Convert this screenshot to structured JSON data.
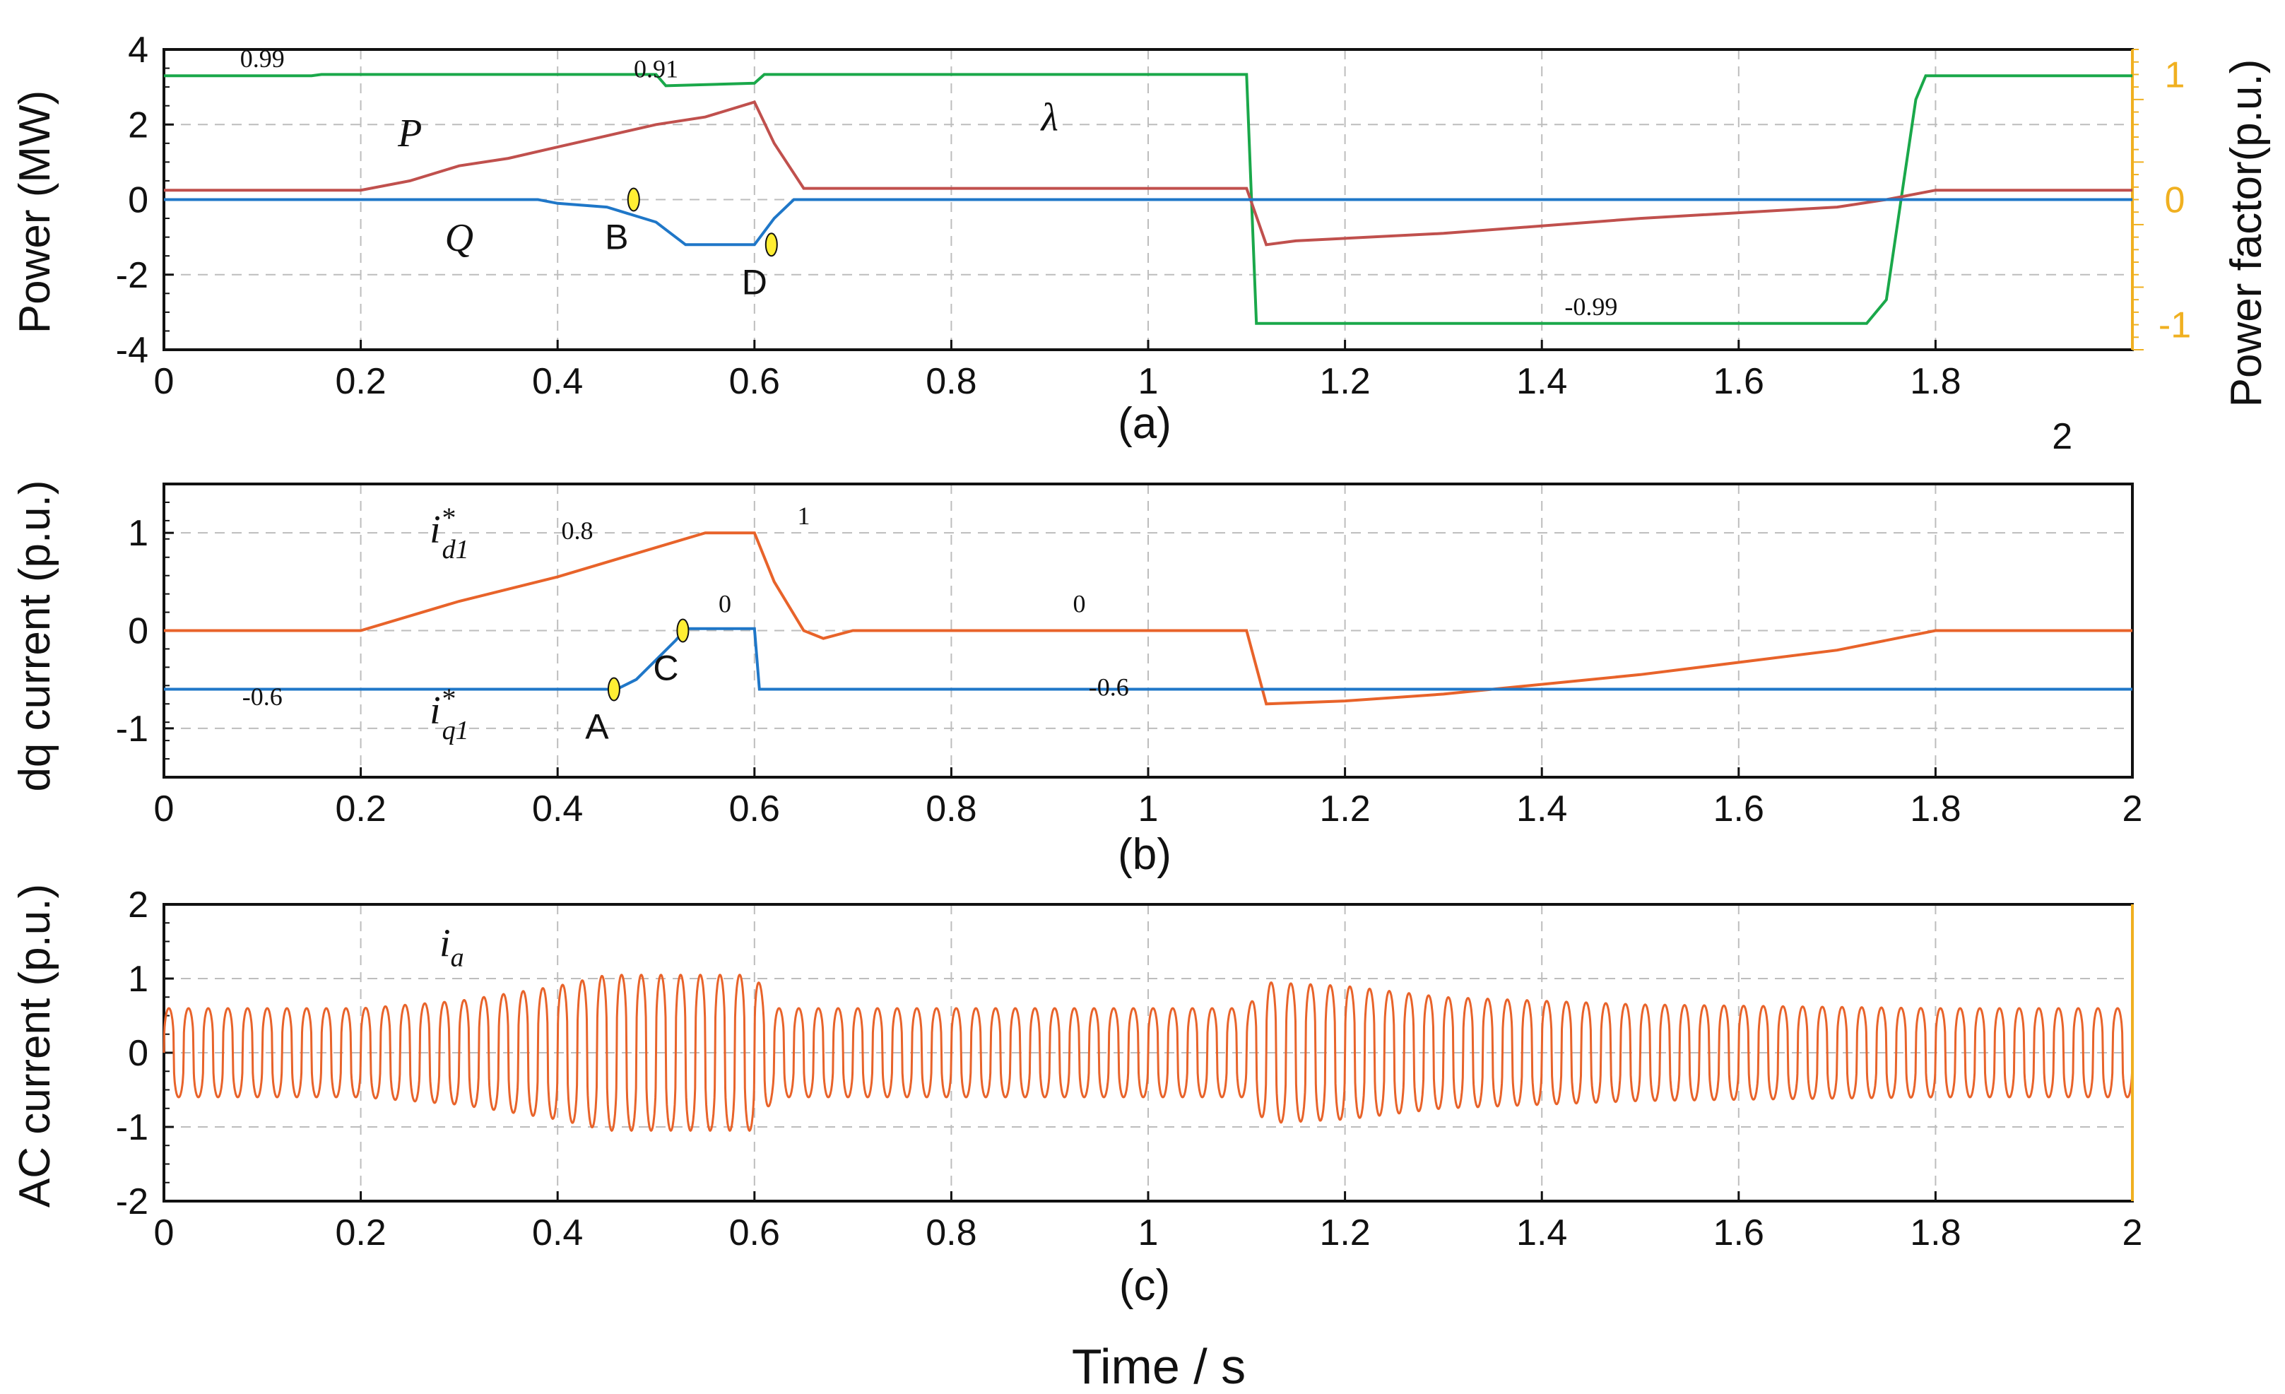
{
  "chart_data": [
    {
      "id": "a",
      "type": "line",
      "caption": "(a)",
      "ylabel": "Power (MW)",
      "ylabel_right": "Power factor(p.u.)",
      "xlim": [
        0,
        2
      ],
      "ylim": [
        -4,
        4
      ],
      "ylim_right": [
        -1.2,
        1.2
      ],
      "x_ticks": [
        "0",
        "0.2",
        "0.4",
        "0.6",
        "0.8",
        "1",
        "1.2",
        "1.4",
        "1.6",
        "1.8"
      ],
      "x_tick_extra": "2",
      "y_ticks": [
        "4",
        "2",
        "0",
        "-2",
        "-4"
      ],
      "y_ticks_right": [
        "1",
        "0",
        "-1"
      ],
      "series": [
        {
          "name": "λ",
          "axis": "right",
          "color": "#1aa84a",
          "points": [
            [
              0,
              0.99
            ],
            [
              0.15,
              0.99
            ],
            [
              0.16,
              1.0
            ],
            [
              0.5,
              1.0
            ],
            [
              0.51,
              0.91
            ],
            [
              0.6,
              0.93
            ],
            [
              0.61,
              1.0
            ],
            [
              1.1,
              1.0
            ],
            [
              1.11,
              -0.99
            ],
            [
              1.73,
              -0.99
            ],
            [
              1.75,
              -0.8
            ],
            [
              1.765,
              0.0
            ],
            [
              1.78,
              0.8
            ],
            [
              1.79,
              0.99
            ],
            [
              2.0,
              0.99
            ]
          ]
        },
        {
          "name": "P",
          "axis": "left",
          "color": "#c0504d",
          "points": [
            [
              0,
              0.25
            ],
            [
              0.2,
              0.25
            ],
            [
              0.25,
              0.5
            ],
            [
              0.3,
              0.9
            ],
            [
              0.35,
              1.1
            ],
            [
              0.4,
              1.4
            ],
            [
              0.45,
              1.7
            ],
            [
              0.5,
              2.0
            ],
            [
              0.55,
              2.2
            ],
            [
              0.6,
              2.6
            ],
            [
              0.62,
              1.5
            ],
            [
              0.65,
              0.3
            ],
            [
              0.7,
              0.3
            ],
            [
              1.1,
              0.3
            ],
            [
              1.12,
              -1.2
            ],
            [
              1.15,
              -1.1
            ],
            [
              1.3,
              -0.9
            ],
            [
              1.5,
              -0.5
            ],
            [
              1.7,
              -0.2
            ],
            [
              1.75,
              0.0
            ],
            [
              1.8,
              0.25
            ],
            [
              2.0,
              0.25
            ]
          ]
        },
        {
          "name": "Q",
          "axis": "left",
          "color": "#1f77c8",
          "points": [
            [
              0,
              0
            ],
            [
              0.38,
              0
            ],
            [
              0.4,
              -0.1
            ],
            [
              0.45,
              -0.2
            ],
            [
              0.5,
              -0.6
            ],
            [
              0.53,
              -1.2
            ],
            [
              0.6,
              -1.2
            ],
            [
              0.62,
              -0.5
            ],
            [
              0.64,
              0
            ],
            [
              1.1,
              0
            ],
            [
              1.2,
              0
            ],
            [
              2.0,
              0
            ]
          ]
        }
      ],
      "annotations": [
        {
          "text": "0.99",
          "x": 0.1,
          "y_right": 0.99
        },
        {
          "text": "0.91",
          "x": 0.5,
          "y_right": 0.91
        },
        {
          "text": "λ",
          "x": 0.9,
          "y_right": 0.95
        },
        {
          "text": "P",
          "x": 0.25,
          "y": 1.2
        },
        {
          "text": "Q",
          "x": 0.3,
          "y": -0.8
        },
        {
          "text": "B",
          "x": 0.46,
          "y": 0
        },
        {
          "text": "D",
          "x": 0.6,
          "y": -1.2
        },
        {
          "text": "-0.99",
          "x": 1.45,
          "y_right": -0.99
        }
      ]
    },
    {
      "id": "b",
      "type": "line",
      "caption": "(b)",
      "ylabel": "dq current (p.u.)",
      "xlim": [
        0,
        2
      ],
      "ylim": [
        -1.5,
        1.5
      ],
      "x_ticks": [
        "0",
        "0.2",
        "0.4",
        "0.6",
        "0.8",
        "1",
        "1.2",
        "1.4",
        "1.6",
        "1.8",
        "2"
      ],
      "y_ticks": [
        "1",
        "0",
        "-1"
      ],
      "series": [
        {
          "name": "i*_d1",
          "color": "#e8632a",
          "points": [
            [
              0,
              0
            ],
            [
              0.2,
              0
            ],
            [
              0.3,
              0.3
            ],
            [
              0.4,
              0.55
            ],
            [
              0.5,
              0.85
            ],
            [
              0.55,
              1.0
            ],
            [
              0.6,
              1.0
            ],
            [
              0.62,
              0.5
            ],
            [
              0.65,
              0
            ],
            [
              0.67,
              -0.08
            ],
            [
              0.7,
              0
            ],
            [
              1.1,
              0
            ],
            [
              1.12,
              -0.75
            ],
            [
              1.2,
              -0.72
            ],
            [
              1.3,
              -0.65
            ],
            [
              1.5,
              -0.45
            ],
            [
              1.7,
              -0.2
            ],
            [
              1.8,
              0
            ],
            [
              2.0,
              0
            ]
          ]
        },
        {
          "name": "i*_q1",
          "color": "#1f77c8",
          "points": [
            [
              0,
              -0.6
            ],
            [
              0.46,
              -0.6
            ],
            [
              0.48,
              -0.5
            ],
            [
              0.5,
              -0.3
            ],
            [
              0.52,
              -0.1
            ],
            [
              0.53,
              0.02
            ],
            [
              0.6,
              0.02
            ],
            [
              0.605,
              -0.6
            ],
            [
              2.0,
              -0.6
            ]
          ]
        }
      ],
      "annotations": [
        {
          "text": "i*_d1",
          "x": 0.27,
          "y": 0.9
        },
        {
          "text": "0.8",
          "x": 0.42,
          "y": 0.85
        },
        {
          "text": "1",
          "x": 0.65,
          "y": 1.0
        },
        {
          "text": "C",
          "x": 0.51,
          "y": 0.0
        },
        {
          "text": "0",
          "x": 0.57,
          "y": 0.1
        },
        {
          "text": "0",
          "x": 0.93,
          "y": 0.1
        },
        {
          "text": "A",
          "x": 0.44,
          "y": -0.6
        },
        {
          "text": "-0.6",
          "x": 0.1,
          "y": -0.85
        },
        {
          "text": "i*_q1",
          "x": 0.27,
          "y": -0.95
        },
        {
          "text": "-0.6",
          "x": 0.96,
          "y": -0.75
        }
      ]
    },
    {
      "id": "c",
      "type": "line",
      "caption": "(c)",
      "ylabel": "AC current (p.u.)",
      "xlabel": "Time / s",
      "xlim": [
        0,
        2
      ],
      "ylim": [
        -2,
        2
      ],
      "x_ticks": [
        "0",
        "0.2",
        "0.4",
        "0.6",
        "0.8",
        "1",
        "1.2",
        "1.4",
        "1.6",
        "1.8",
        "2"
      ],
      "y_ticks": [
        "2",
        "1",
        "0",
        "-1",
        "-2"
      ],
      "series": [
        {
          "name": "i_a",
          "color": "#e8632a",
          "frequency_hz": 50,
          "envelope": [
            [
              0,
              0.6
            ],
            [
              0.2,
              0.6
            ],
            [
              0.3,
              0.7
            ],
            [
              0.4,
              0.9
            ],
            [
              0.45,
              1.05
            ],
            [
              0.6,
              1.05
            ],
            [
              0.62,
              0.6
            ],
            [
              1.1,
              0.6
            ],
            [
              1.12,
              0.95
            ],
            [
              1.2,
              0.9
            ],
            [
              1.3,
              0.75
            ],
            [
              1.5,
              0.65
            ],
            [
              1.8,
              0.6
            ],
            [
              2.0,
              0.6
            ]
          ]
        }
      ],
      "annotations": [
        {
          "text": "i_a",
          "x": 0.28,
          "y": 1.3
        }
      ]
    }
  ],
  "labels": {
    "a_caption": "(a)",
    "b_caption": "(b)",
    "c_caption": "(c)",
    "xlabel": "Time / s",
    "a_ylabel": "Power (MW)",
    "a_ylabel_right": "Power factor(p.u.)",
    "b_ylabel": "dq current (p.u.)",
    "c_ylabel": "AC current (p.u.)"
  },
  "colors": {
    "lambda": "#1aa84a",
    "P": "#c0504d",
    "Q": "#1f77c8",
    "orange": "#e8632a",
    "right_axis": "#f0b020"
  }
}
